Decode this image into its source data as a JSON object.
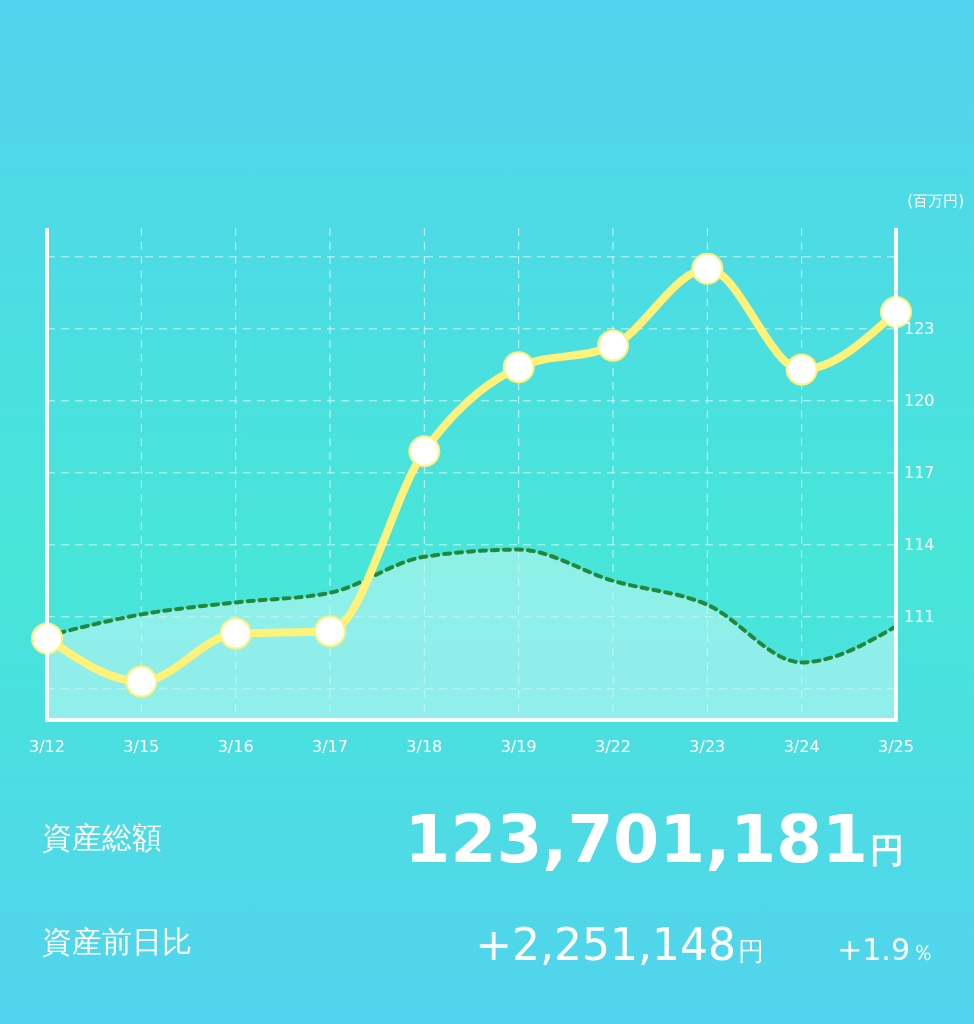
{
  "chart_data": {
    "type": "line",
    "ylabel": "(百万円)",
    "categories": [
      "3/12",
      "3/15",
      "3/16",
      "3/17",
      "3/18",
      "3/19",
      "3/22",
      "3/23",
      "3/24",
      "3/25"
    ],
    "series": [
      {
        "type": "area",
        "color": "#23893a",
        "line_style": "dashed",
        "marker": "none",
        "values": [
          110.2,
          111.1,
          111.6,
          112.0,
          113.5,
          113.8,
          112.5,
          111.5,
          109.1,
          110.6
        ]
      },
      {
        "type": "line",
        "color": "#fff27a",
        "line_style": "solid",
        "marker": "circle",
        "values": [
          110.1,
          108.3,
          110.3,
          110.4,
          117.9,
          121.4,
          122.3,
          125.5,
          121.3,
          123.7
        ]
      }
    ],
    "ylim": [
      106.7,
      127.2
    ],
    "yticks": [
      {
        "value": 108,
        "label": null
      },
      111,
      114,
      117,
      120,
      123,
      {
        "value": 126,
        "label": null
      }
    ],
    "grid": true,
    "annotations": [
      "資産総額",
      "123,701,181",
      "円",
      "資産前日比",
      "+2,251,148",
      "円",
      "+1.9",
      "％"
    ]
  }
}
